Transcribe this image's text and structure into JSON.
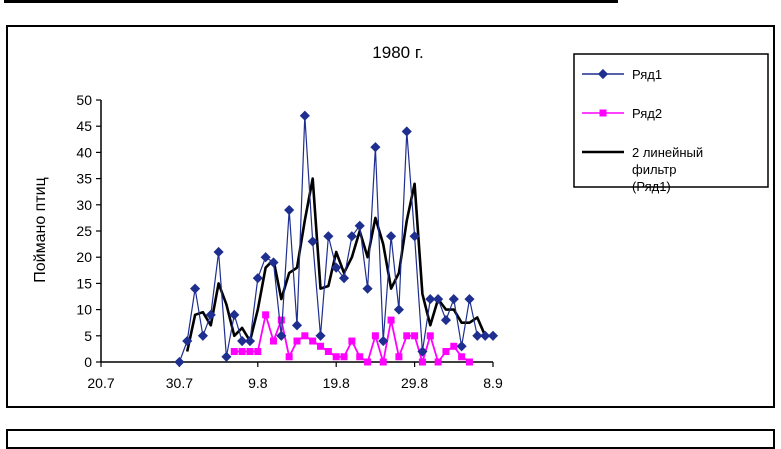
{
  "chart_data": {
    "type": "line",
    "title": "1980 г.",
    "xlabel": "",
    "ylabel": "Поймано птиц",
    "ylim": [
      0,
      50
    ],
    "yticks": [
      "0",
      "5",
      "10",
      "15",
      "20",
      "25",
      "30",
      "35",
      "40",
      "45",
      "50"
    ],
    "xtick_labels": [
      "20.7",
      "30.7",
      "9.8",
      "19.8",
      "29.8",
      "8.9"
    ],
    "x_domain_days": [
      0,
      50
    ],
    "grid": false,
    "legend_position": "right",
    "series": [
      {
        "name": "Ряд1",
        "color": "#1f2f8f",
        "marker": "diamond",
        "start_day": 10,
        "values": [
          0,
          4,
          14,
          5,
          9,
          21,
          1,
          9,
          4,
          4,
          16,
          20,
          19,
          5,
          29,
          7,
          47,
          23,
          5,
          24,
          18,
          16,
          24,
          26,
          14,
          41,
          4,
          24,
          10,
          44,
          24,
          2,
          12,
          12,
          8,
          12,
          3,
          12,
          5,
          5,
          5
        ]
      },
      {
        "name": "Ряд2",
        "color": "#ff00ff",
        "marker": "square",
        "start_day": 17,
        "values": [
          2,
          2,
          2,
          2,
          9,
          4,
          8,
          1,
          4,
          5,
          4,
          3,
          2,
          1,
          1,
          4,
          1,
          0,
          5,
          0,
          8,
          1,
          5,
          5,
          0,
          5,
          0,
          2,
          3,
          1,
          0
        ]
      },
      {
        "name": "2 линейный фильтр (Ряд1)",
        "color": "#000000",
        "marker": "none",
        "start_day": 11,
        "values": [
          2,
          9,
          9.5,
          7,
          15,
          11,
          5,
          6.5,
          4,
          10,
          18,
          19.5,
          12,
          17,
          18,
          27,
          35,
          14,
          14.5,
          21,
          17,
          20,
          25,
          20,
          27.5,
          22.5,
          14,
          17,
          27,
          34,
          13,
          7,
          12,
          10,
          10,
          7.5,
          7.5,
          8.5,
          5,
          5
        ]
      }
    ]
  }
}
